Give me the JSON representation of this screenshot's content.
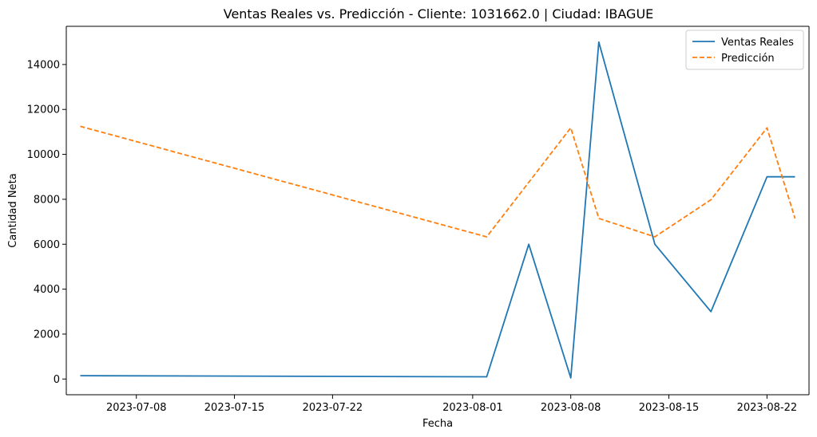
{
  "chart_data": {
    "type": "line",
    "title": "Ventas Reales vs. Predicción - Cliente: 1031662.0 | Ciudad: IBAGUE",
    "xlabel": "Fecha",
    "ylabel": "Cantidad Neta",
    "x_axis_type": "date",
    "xlim": [
      "2023-07-03",
      "2023-08-25"
    ],
    "ylim": [
      -700,
      15700
    ],
    "x_ticks": [
      "2023-07-08",
      "2023-07-15",
      "2023-07-22",
      "2023-08-01",
      "2023-08-08",
      "2023-08-15",
      "2023-08-22"
    ],
    "y_ticks": [
      0,
      2000,
      4000,
      6000,
      8000,
      10000,
      12000,
      14000
    ],
    "grid": false,
    "legend_position": "top-right",
    "series": [
      {
        "name": "Ventas Reales",
        "color": "#1f77b4",
        "line_style": "solid",
        "points": [
          {
            "x": "2023-07-04",
            "y": 150
          },
          {
            "x": "2023-08-02",
            "y": 100
          },
          {
            "x": "2023-08-05",
            "y": 6000
          },
          {
            "x": "2023-08-08",
            "y": 50
          },
          {
            "x": "2023-08-10",
            "y": 15000
          },
          {
            "x": "2023-08-14",
            "y": 6000
          },
          {
            "x": "2023-08-18",
            "y": 3000
          },
          {
            "x": "2023-08-22",
            "y": 9000
          },
          {
            "x": "2023-08-24",
            "y": 9000
          }
        ]
      },
      {
        "name": "Predicción",
        "color": "#ff7f0e",
        "line_style": "dashed",
        "points": [
          {
            "x": "2023-07-04",
            "y": 11250
          },
          {
            "x": "2023-08-02",
            "y": 6330
          },
          {
            "x": "2023-08-08",
            "y": 11180
          },
          {
            "x": "2023-08-10",
            "y": 7150
          },
          {
            "x": "2023-08-14",
            "y": 6330
          },
          {
            "x": "2023-08-18",
            "y": 7980
          },
          {
            "x": "2023-08-22",
            "y": 11180
          },
          {
            "x": "2023-08-24",
            "y": 7150
          }
        ]
      }
    ]
  }
}
